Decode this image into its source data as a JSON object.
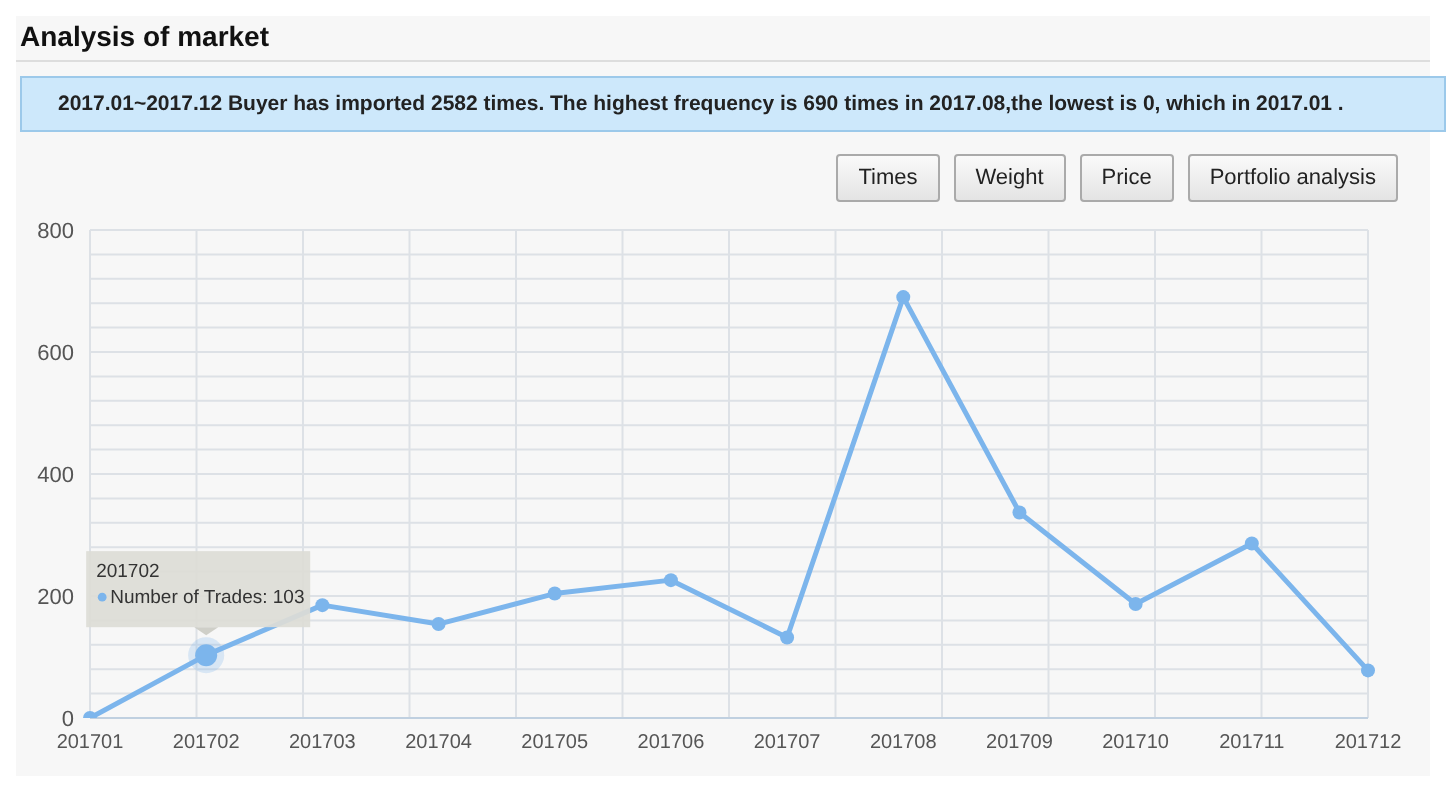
{
  "chart_data": {
    "type": "line",
    "title": "Analysis of market",
    "subtitle": "2017.01~2017.12 Buyer has imported 2582 times. The highest frequency is 690 times in 2017.08,the lowest is 0, which in 2017.01 .",
    "annotations": [
      "Times",
      "Weight",
      "Price",
      "Portfolio analysis",
      {
        "text": "201702\nNumber of Trades: 103",
        "x": "201702",
        "y": 103
      }
    ],
    "categories": [
      "201701",
      "201702",
      "201703",
      "201704",
      "201705",
      "201706",
      "201707",
      "201708",
      "201709",
      "201710",
      "201711",
      "201712"
    ],
    "series": [
      {
        "color": "#7cb5ec",
        "values": [
          0,
          103,
          185,
          154,
          204,
          226,
          132,
          690,
          337,
          187,
          286,
          78
        ]
      }
    ],
    "ylim": [
      0,
      800
    ],
    "yticks": [
      0,
      {
        "value": 40,
        "label": null
      },
      {
        "value": 80,
        "label": null
      },
      {
        "value": 120,
        "label": null
      },
      {
        "value": 160,
        "label": null
      },
      200,
      {
        "value": 240,
        "label": null
      },
      {
        "value": 280,
        "label": null
      },
      {
        "value": 320,
        "label": null
      },
      {
        "value": 360,
        "label": null
      },
      400,
      {
        "value": 440,
        "label": null
      },
      {
        "value": 480,
        "label": null
      },
      {
        "value": 520,
        "label": null
      },
      {
        "value": 560,
        "label": null
      },
      600,
      {
        "value": 640,
        "label": null
      },
      {
        "value": 680,
        "label": null
      },
      {
        "value": 720,
        "label": null
      },
      {
        "value": 760,
        "label": null
      },
      800
    ],
    "grid": true,
    "marker": "circle",
    "line_style": "solid"
  }
}
